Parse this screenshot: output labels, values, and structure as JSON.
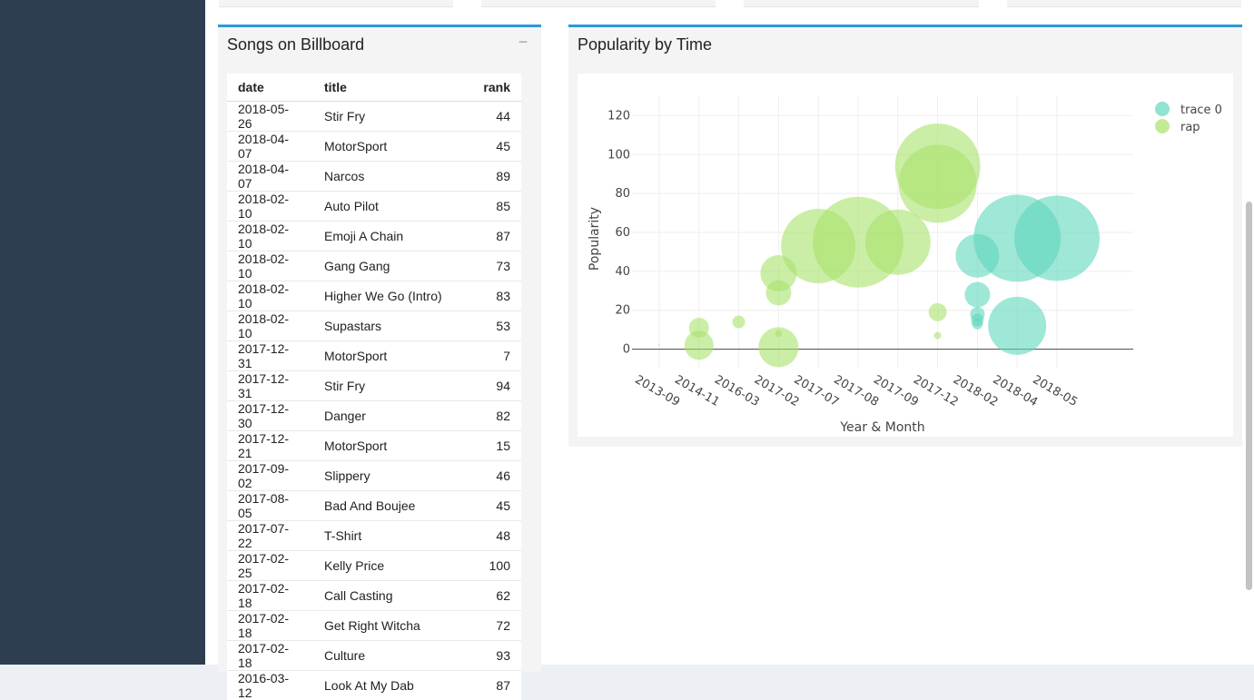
{
  "songs_box": {
    "title": "Songs on Billboard",
    "collapse_label": "−",
    "columns": [
      "date",
      "title",
      "rank"
    ],
    "rows": [
      [
        "2018-05-26",
        "Stir Fry",
        "44"
      ],
      [
        "2018-04-07",
        "MotorSport",
        "45"
      ],
      [
        "2018-04-07",
        "Narcos",
        "89"
      ],
      [
        "2018-02-10",
        "Auto Pilot",
        "85"
      ],
      [
        "2018-02-10",
        "Emoji A Chain",
        "87"
      ],
      [
        "2018-02-10",
        "Gang Gang",
        "73"
      ],
      [
        "2018-02-10",
        "Higher We Go (Intro)",
        "83"
      ],
      [
        "2018-02-10",
        "Supastars",
        "53"
      ],
      [
        "2017-12-31",
        "MotorSport",
        "7"
      ],
      [
        "2017-12-31",
        "Stir Fry",
        "94"
      ],
      [
        "2017-12-30",
        "Danger",
        "82"
      ],
      [
        "2017-12-21",
        "MotorSport",
        "15"
      ],
      [
        "2017-09-02",
        "Slippery",
        "46"
      ],
      [
        "2017-08-05",
        "Bad And Boujee",
        "45"
      ],
      [
        "2017-07-22",
        "T-Shirt",
        "48"
      ],
      [
        "2017-02-25",
        "Kelly Price",
        "100"
      ],
      [
        "2017-02-18",
        "Call Casting",
        "62"
      ],
      [
        "2017-02-18",
        "Get Right Witcha",
        "72"
      ],
      [
        "2017-02-18",
        "Culture",
        "93"
      ],
      [
        "2016-03-12",
        "Look At My Dab",
        "87"
      ]
    ]
  },
  "chart_box": {
    "title": "Popularity by Time"
  },
  "colors": {
    "trace0": "#5fd7bd",
    "rap": "#a9e36a",
    "accent": "#2a9bd4",
    "sidebar": "#2c3e50"
  },
  "chart_data": {
    "type": "scatter",
    "subtype": "bubble",
    "title": "",
    "xlabel": "Year & Month",
    "ylabel": "Popularity",
    "categories": [
      "2013-09",
      "2014-11",
      "2016-03",
      "2017-02",
      "2017-07",
      "2017-08",
      "2017-09",
      "2017-12",
      "2018-02",
      "2018-04",
      "2018-05"
    ],
    "yticks": [
      0,
      20,
      40,
      60,
      80,
      100,
      120
    ],
    "ylim": [
      -10,
      130
    ],
    "grid": true,
    "legend_position": "top-right",
    "series": [
      {
        "name": "trace 0",
        "color": "#5fd7bd",
        "points": [
          {
            "x": "2018-02",
            "y": 48,
            "size": 24
          },
          {
            "x": "2018-02",
            "y": 28,
            "size": 14
          },
          {
            "x": "2018-02",
            "y": 18,
            "size": 8
          },
          {
            "x": "2018-02",
            "y": 15,
            "size": 7
          },
          {
            "x": "2018-02",
            "y": 13,
            "size": 6
          },
          {
            "x": "2018-04",
            "y": 57,
            "size": 48
          },
          {
            "x": "2018-04",
            "y": 12,
            "size": 32
          },
          {
            "x": "2018-05",
            "y": 57,
            "size": 47
          }
        ]
      },
      {
        "name": "rap",
        "color": "#a9e36a",
        "points": [
          {
            "x": "2013-09",
            "y": 2,
            "size": 1
          },
          {
            "x": "2014-11",
            "y": 11,
            "size": 11
          },
          {
            "x": "2014-11",
            "y": 2,
            "size": 16
          },
          {
            "x": "2016-03",
            "y": 14,
            "size": 7
          },
          {
            "x": "2017-02",
            "y": 39,
            "size": 20
          },
          {
            "x": "2017-02",
            "y": 29,
            "size": 14
          },
          {
            "x": "2017-02",
            "y": 8,
            "size": 4
          },
          {
            "x": "2017-02",
            "y": 1,
            "size": 22
          },
          {
            "x": "2017-07",
            "y": 53,
            "size": 41
          },
          {
            "x": "2017-08",
            "y": 55,
            "size": 50
          },
          {
            "x": "2017-09",
            "y": 55,
            "size": 36
          },
          {
            "x": "2017-12",
            "y": 94,
            "size": 47
          },
          {
            "x": "2017-12",
            "y": 85,
            "size": 43
          },
          {
            "x": "2017-12",
            "y": 19,
            "size": 10
          },
          {
            "x": "2017-12",
            "y": 7,
            "size": 4
          }
        ]
      }
    ]
  }
}
